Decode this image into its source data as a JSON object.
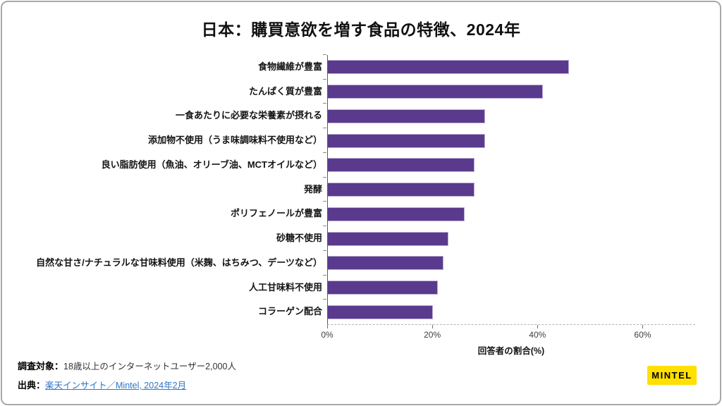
{
  "title": "日本：購買意欲を増す食品の特徴、2024年",
  "chart_data": {
    "type": "bar",
    "orientation": "horizontal",
    "title": "日本：購買意欲を増す食品の特徴、2024年",
    "categories": [
      "食物繊維が豊富",
      "たんぱく質が豊富",
      "一食あたりに必要な栄養素が摂れる",
      "添加物不使用（うま味調味料不使用など）",
      "良い脂肪使用（魚油、オリーブ油、MCTオイルなど）",
      "発酵",
      "ポリフェノールが豊富",
      "砂糖不使用",
      "自然な甘さ/ナチュラルな甘味料使用（米麹、はちみつ、デーツなど）",
      "人工甘味料不使用",
      "コラーゲン配合"
    ],
    "values": [
      46,
      41,
      30,
      30,
      28,
      28,
      26,
      23,
      22,
      21,
      20
    ],
    "unit": "%",
    "xlabel": "回答者の割合(%)",
    "x_ticks": [
      {
        "label": "0%",
        "value": 0
      },
      {
        "label": "20%",
        "value": 20
      },
      {
        "label": "40%",
        "value": 40
      },
      {
        "label": "60%",
        "value": 60
      }
    ],
    "xlim": [
      0,
      70
    ],
    "grid": false,
    "legend": "none",
    "bar_color": "#5a3a8d"
  },
  "footer": {
    "survey_label": "調査対象：",
    "survey_text": "18歳以上のインターネットユーザー2,000人",
    "source_label": "出典：",
    "source_link": "楽天インサイト／Mintel, 2024年2月",
    "link_color": "#2e74c8"
  },
  "logo": {
    "text": "MINTEL",
    "bg_color": "#ffe000",
    "text_color": "#000000"
  }
}
